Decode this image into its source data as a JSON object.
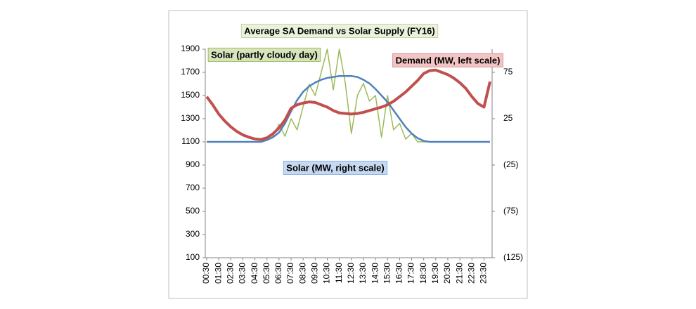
{
  "chart_data": {
    "type": "line",
    "title": "Average SA Demand vs Solar Supply (FY16)",
    "annotations": [
      "Solar (partly cloudy day)",
      "Demand (MW, left scale)",
      "Solar (MW, right scale)"
    ],
    "categories": [
      "00:30",
      null,
      "01:30",
      null,
      "02:30",
      null,
      "03:30",
      null,
      "04:30",
      null,
      "05:30",
      null,
      "06:30",
      null,
      "07:30",
      null,
      "08:30",
      null,
      "09:30",
      null,
      "10:30",
      null,
      "11:30",
      null,
      "12:30",
      null,
      "13:30",
      null,
      "14:30",
      null,
      "15:30",
      null,
      "16:30",
      null,
      "17:30",
      null,
      "18:30",
      null,
      "19:30",
      null,
      "20:30",
      null,
      "21:30",
      null,
      "22:30",
      null,
      "23:30",
      null
    ],
    "series": [
      {
        "name": "Demand (MW, left scale)",
        "color": "#c0504d",
        "axis": "y",
        "values": [
          1490,
          1420,
          1340,
          1280,
          1230,
          1190,
          1160,
          1140,
          1125,
          1120,
          1135,
          1170,
          1220,
          1290,
          1390,
          1420,
          1435,
          1445,
          1440,
          1420,
          1400,
          1370,
          1350,
          1345,
          1340,
          1345,
          1355,
          1370,
          1385,
          1400,
          1420,
          1450,
          1490,
          1530,
          1580,
          1630,
          1690,
          1715,
          1720,
          1700,
          1680,
          1650,
          1610,
          1560,
          1490,
          1430,
          1400,
          1620
        ]
      },
      {
        "name": "Solar (MW, right scale)",
        "color": "#4f81bd",
        "axis": "y2",
        "values": [
          0,
          0,
          0,
          0,
          0,
          0,
          0,
          0,
          0,
          0,
          2,
          5,
          10,
          20,
          33,
          45,
          54,
          60,
          64,
          67,
          69,
          70,
          71,
          71,
          71,
          70,
          67,
          63,
          57,
          50,
          43,
          34,
          25,
          16,
          9,
          4,
          1,
          0,
          0,
          0,
          0,
          0,
          0,
          0,
          0,
          0,
          0,
          0
        ]
      },
      {
        "name": "Solar (partly cloudy day)",
        "color": "#9bbb59",
        "axis": "y2",
        "values": [
          0,
          0,
          0,
          0,
          0,
          0,
          0,
          0,
          0,
          0,
          2,
          6,
          19,
          6,
          25,
          13,
          38,
          62,
          50,
          75,
          100,
          56,
          100,
          63,
          9,
          50,
          63,
          44,
          50,
          5,
          50,
          13,
          20,
          3,
          9,
          0,
          0,
          0,
          0,
          0,
          0,
          0,
          0,
          0,
          0,
          0,
          0,
          0
        ]
      }
    ],
    "ylim": [
      100,
      1900
    ],
    "yticks": [
      100,
      300,
      500,
      700,
      900,
      1100,
      1300,
      1500,
      1700,
      1900
    ],
    "y2lim": [
      -125,
      100
    ],
    "y2ticks": [
      {
        "value": -125,
        "label": "(125)"
      },
      {
        "value": -75,
        "label": "(75)"
      },
      {
        "value": -25,
        "label": "(25)"
      },
      25,
      75
    ],
    "grid": false
  }
}
